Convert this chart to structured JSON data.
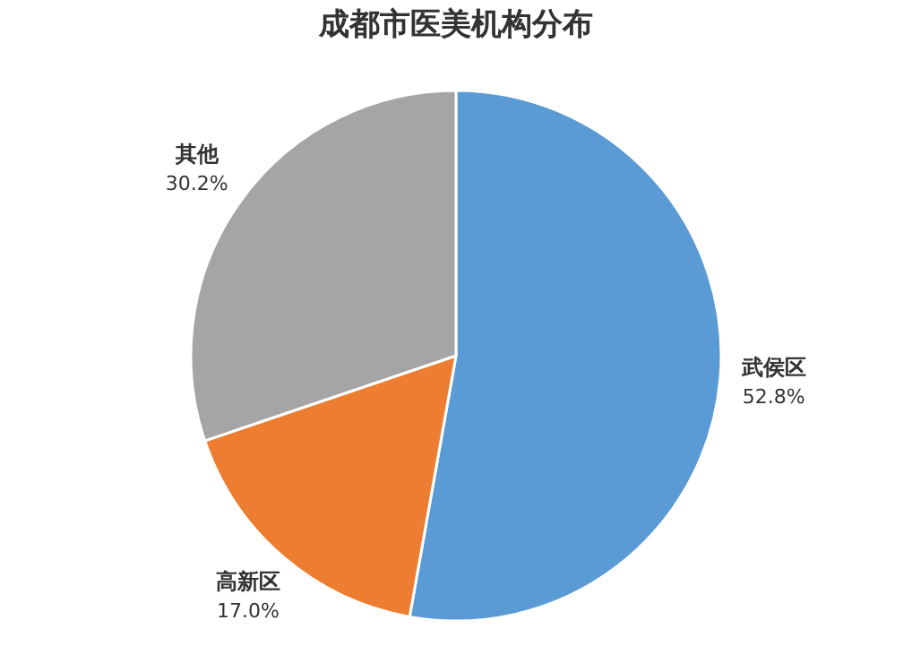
{
  "chart_data": {
    "type": "pie",
    "title": "成都市医美机构分布",
    "categories": [
      "武侯区",
      "高新区",
      "其他"
    ],
    "values": [
      52.8,
      17.0,
      30.2
    ],
    "colors": [
      "#5b9bd5",
      "#ed7d31",
      "#a5a5a5"
    ],
    "value_labels": [
      "52.8%",
      "17.0%",
      "30.2%"
    ],
    "legend": false
  }
}
